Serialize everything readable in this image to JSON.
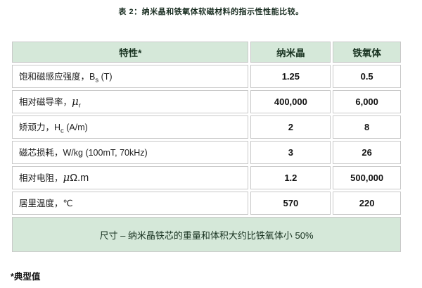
{
  "title": "表 2：纳米晶和铁氧体软磁材料的指示性性能比较。",
  "colors": {
    "accent_green": "#d5e8d9",
    "border_gray": "#c9c9c9",
    "header_text": "#17311f",
    "body_text": "#1c1c1c"
  },
  "table": {
    "headers": [
      "特性*",
      "纳米晶",
      "铁氧体"
    ],
    "rows": [
      {
        "pre": "饱和磁感应强度，B",
        "sub": "s",
        "post": " (T)",
        "nano": "1.25",
        "ferrite": "0.5"
      },
      {
        "pre": "相对磁导率，",
        "sym": "μ",
        "sub": "r",
        "post": "",
        "nano": "400,000",
        "ferrite": "6,000"
      },
      {
        "pre": "矫顽力，H",
        "sub": "c",
        "post": " (A/m)",
        "nano": "2",
        "ferrite": "8"
      },
      {
        "pre": "磁芯损耗，W/kg (100mT, 70kHz)",
        "post": "",
        "nano": "3",
        "ferrite": "26"
      },
      {
        "pre": "相对电阻，",
        "sym": "μ",
        "unit": "Ω.m",
        "post": "",
        "nano": "1.2",
        "ferrite": "500,000"
      },
      {
        "pre": "居里温度，℃",
        "post": "",
        "nano": "570",
        "ferrite": "220"
      }
    ],
    "size_note": "尺寸 – 纳米晶铁芯的重量和体积大约比铁氧体小 50%"
  },
  "footnote": "*典型值"
}
